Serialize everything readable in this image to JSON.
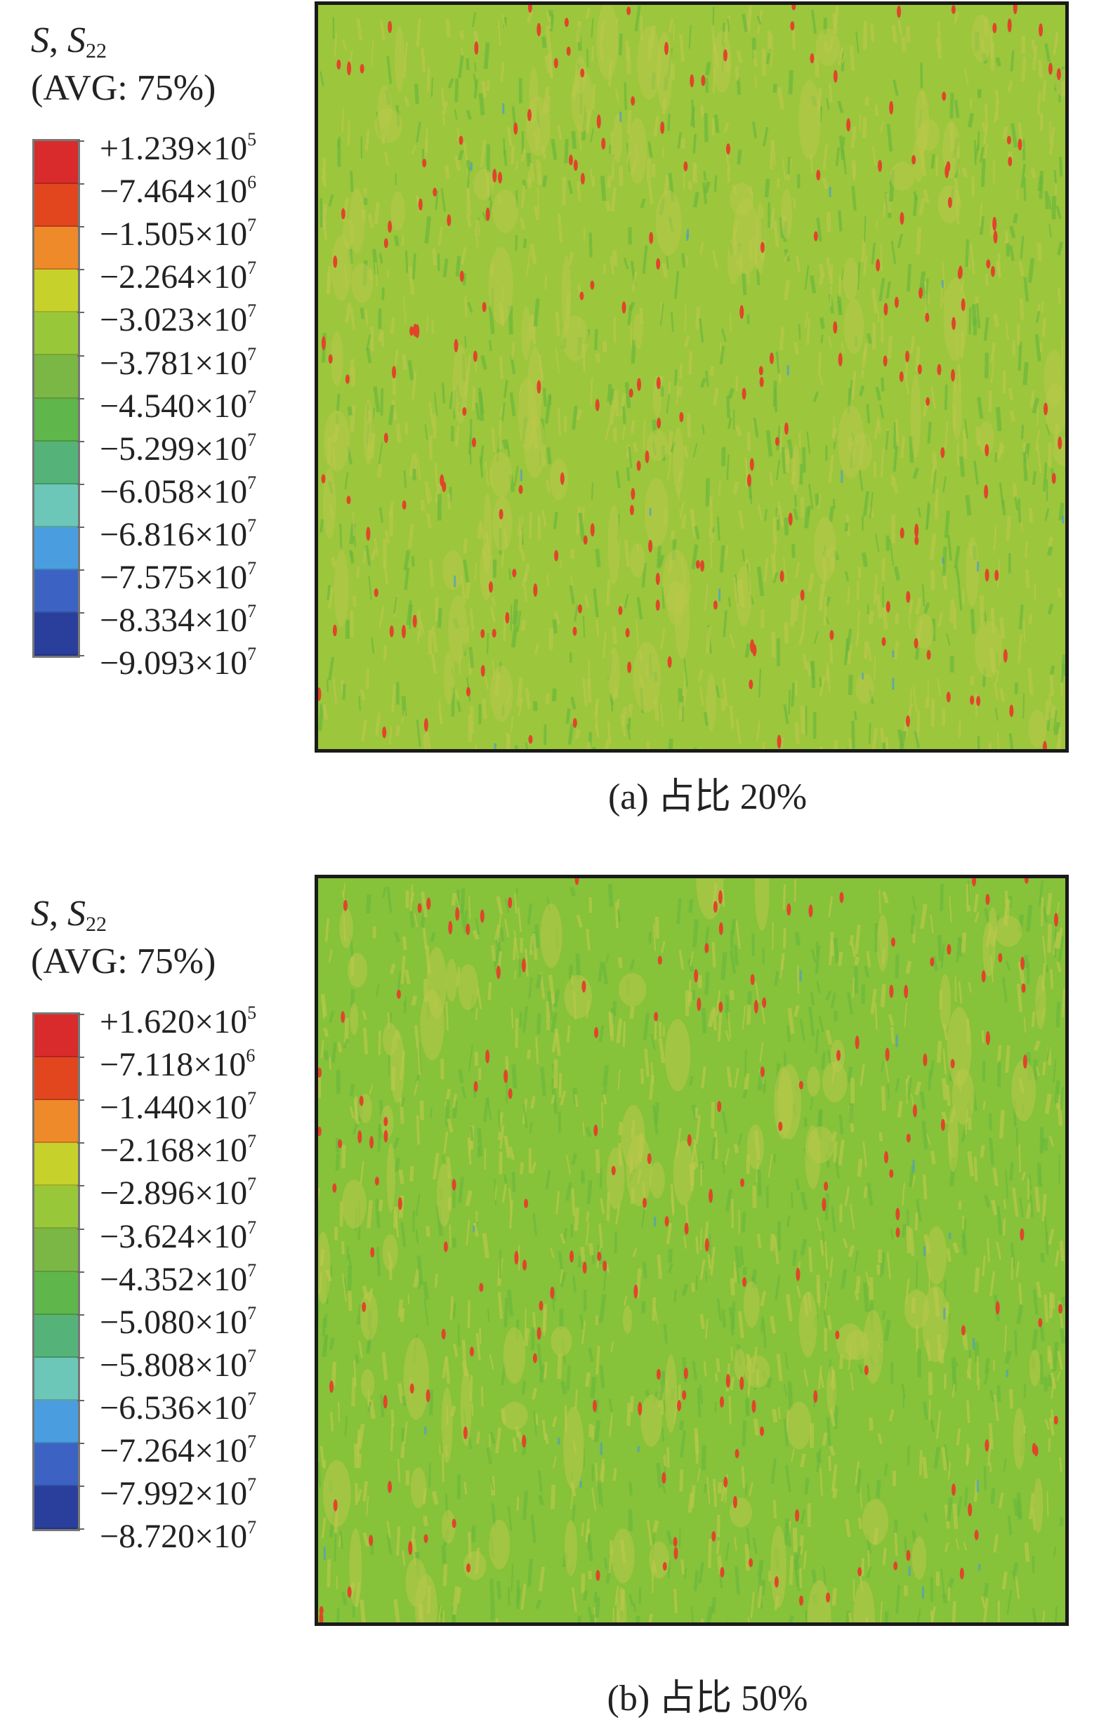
{
  "panels": [
    {
      "legend": {
        "title_var": "S",
        "title_sep": ", ",
        "title_comp": "S",
        "title_sub": "22",
        "avg": "(AVG: 75%)",
        "entries": [
          {
            "mantissa": "+1.239×10",
            "exp": "5"
          },
          {
            "mantissa": "−7.464×10",
            "exp": "6"
          },
          {
            "mantissa": "−1.505×10",
            "exp": "7"
          },
          {
            "mantissa": "−2.264×10",
            "exp": "7"
          },
          {
            "mantissa": "−3.023×10",
            "exp": "7"
          },
          {
            "mantissa": "−3.781×10",
            "exp": "7"
          },
          {
            "mantissa": "−4.540×10",
            "exp": "7"
          },
          {
            "mantissa": "−5.299×10",
            "exp": "7"
          },
          {
            "mantissa": "−6.058×10",
            "exp": "7"
          },
          {
            "mantissa": "−6.816×10",
            "exp": "7"
          },
          {
            "mantissa": "−7.575×10",
            "exp": "7"
          },
          {
            "mantissa": "−8.334×10",
            "exp": "7"
          },
          {
            "mantissa": "−9.093×10",
            "exp": "7"
          }
        ]
      },
      "caption": "(a) 占比 20%",
      "base_color": "#9cc63c"
    },
    {
      "legend": {
        "title_var": "S",
        "title_sep": ", ",
        "title_comp": "S",
        "title_sub": "22",
        "avg": "(AVG: 75%)",
        "entries": [
          {
            "mantissa": "+1.620×10",
            "exp": "5"
          },
          {
            "mantissa": "−7.118×10",
            "exp": "6"
          },
          {
            "mantissa": "−1.440×10",
            "exp": "7"
          },
          {
            "mantissa": "−2.168×10",
            "exp": "7"
          },
          {
            "mantissa": "−2.896×10",
            "exp": "7"
          },
          {
            "mantissa": "−3.624×10",
            "exp": "7"
          },
          {
            "mantissa": "−4.352×10",
            "exp": "7"
          },
          {
            "mantissa": "−5.080×10",
            "exp": "7"
          },
          {
            "mantissa": "−5.808×10",
            "exp": "7"
          },
          {
            "mantissa": "−6.536×10",
            "exp": "7"
          },
          {
            "mantissa": "−7.264×10",
            "exp": "7"
          },
          {
            "mantissa": "−7.992×10",
            "exp": "7"
          },
          {
            "mantissa": "−8.720×10",
            "exp": "7"
          }
        ]
      },
      "caption": "(b) 占比 50%",
      "base_color": "#86c23a"
    }
  ],
  "colormap": [
    "#d92b2b",
    "#e2461f",
    "#ee8a2a",
    "#c7d12b",
    "#98c83a",
    "#7ab745",
    "#5fb64a",
    "#55b37a",
    "#6cc7b8",
    "#4a9ee0",
    "#3c62c4",
    "#2a3e9c"
  ],
  "contour_colors": {
    "light": "#b9c84a",
    "dark": "#6bb83c",
    "hotspot": "#e0452a",
    "cold": "#4a9ec8"
  }
}
